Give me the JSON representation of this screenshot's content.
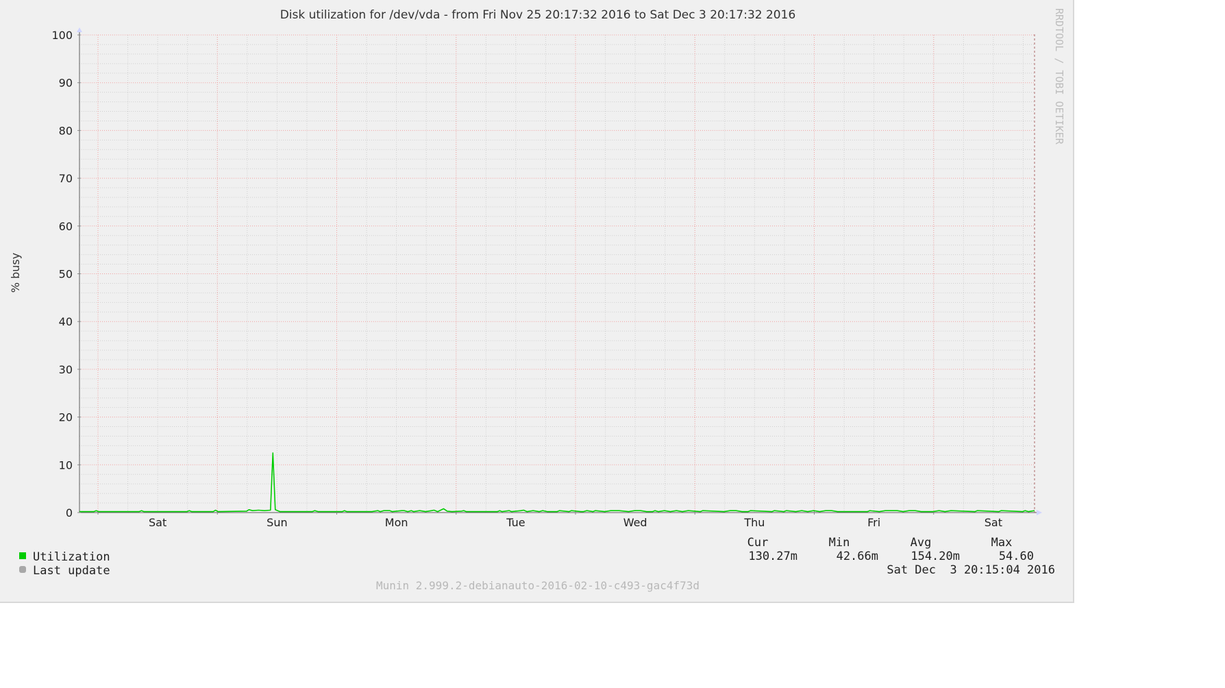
{
  "chart_data": {
    "type": "line",
    "title": "Disk utilization for /dev/vda - from Fri Nov 25 20:17:32 2016 to Sat Dec  3 20:17:32 2016",
    "ylabel": "% busy",
    "xlabel": "",
    "ylim": [
      0,
      100
    ],
    "yticks": [
      "0",
      "10",
      "20",
      "30",
      "40",
      "50",
      "60",
      "70",
      "80",
      "90",
      "100"
    ],
    "xlim_days": [
      0,
      8
    ],
    "xticks": [
      {
        "label": "Sat",
        "day": 0.655
      },
      {
        "label": "Sun",
        "day": 1.655
      },
      {
        "label": "Mon",
        "day": 2.655
      },
      {
        "label": "Tue",
        "day": 3.655
      },
      {
        "label": "Wed",
        "day": 4.655
      },
      {
        "label": "Thu",
        "day": 5.655
      },
      {
        "label": "Fri",
        "day": 6.655
      },
      {
        "label": "Sat",
        "day": 7.655
      }
    ],
    "grid": true,
    "series": [
      {
        "name": "Utilization",
        "color": "#00cc00",
        "x_days": [
          0,
          0.12,
          0.14,
          0.16,
          0.5,
          0.52,
          0.54,
          0.9,
          0.92,
          0.94,
          1.12,
          1.14,
          1.16,
          1.4,
          1.42,
          1.45,
          1.5,
          1.55,
          1.6,
          1.62,
          1.64,
          1.66,
          1.68,
          1.7,
          1.72,
          1.76,
          1.8,
          1.95,
          1.97,
          2.0,
          2.2,
          2.22,
          2.24,
          2.45,
          2.5,
          2.52,
          2.55,
          2.6,
          2.62,
          2.7,
          2.72,
          2.75,
          2.78,
          2.8,
          2.85,
          2.9,
          2.95,
          2.97,
          3.0,
          3.05,
          3.08,
          3.12,
          3.2,
          3.22,
          3.24,
          3.5,
          3.52,
          3.54,
          3.6,
          3.62,
          3.7,
          3.72,
          3.75,
          3.8,
          3.85,
          3.88,
          3.92,
          4.0,
          4.02,
          4.1,
          4.12,
          4.2,
          4.22,
          4.25,
          4.3,
          4.32,
          4.4,
          4.45,
          4.5,
          4.52,
          4.6,
          4.65,
          4.7,
          4.75,
          4.8,
          4.82,
          4.85,
          4.9,
          4.95,
          5.0,
          5.05,
          5.1,
          5.2,
          5.22,
          5.4,
          5.45,
          5.5,
          5.55,
          5.6,
          5.62,
          5.8,
          5.82,
          5.9,
          5.92,
          6.0,
          6.05,
          6.1,
          6.15,
          6.2,
          6.25,
          6.3,
          6.35,
          6.6,
          6.62,
          6.7,
          6.75,
          6.8,
          6.85,
          6.9,
          6.95,
          7.0,
          7.05,
          7.15,
          7.2,
          7.25,
          7.3,
          7.5,
          7.52,
          7.7,
          7.72,
          7.9,
          7.92,
          7.95,
          8.0
        ],
        "values": [
          0.2,
          0.2,
          0.4,
          0.2,
          0.2,
          0.4,
          0.2,
          0.2,
          0.4,
          0.2,
          0.2,
          0.5,
          0.2,
          0.3,
          0.6,
          0.4,
          0.5,
          0.4,
          0.5,
          12.5,
          0.6,
          0.4,
          0.2,
          0.2,
          0.2,
          0.2,
          0.2,
          0.2,
          0.4,
          0.2,
          0.2,
          0.4,
          0.2,
          0.2,
          0.4,
          0.2,
          0.4,
          0.4,
          0.2,
          0.4,
          0.4,
          0.2,
          0.4,
          0.2,
          0.4,
          0.2,
          0.4,
          0.5,
          0.2,
          0.8,
          0.3,
          0.2,
          0.3,
          0.4,
          0.2,
          0.2,
          0.4,
          0.2,
          0.4,
          0.2,
          0.4,
          0.5,
          0.2,
          0.4,
          0.2,
          0.4,
          0.2,
          0.2,
          0.4,
          0.2,
          0.4,
          0.2,
          0.2,
          0.4,
          0.2,
          0.4,
          0.2,
          0.4,
          0.4,
          0.4,
          0.2,
          0.4,
          0.4,
          0.2,
          0.2,
          0.4,
          0.2,
          0.4,
          0.2,
          0.4,
          0.2,
          0.4,
          0.2,
          0.4,
          0.2,
          0.4,
          0.4,
          0.2,
          0.2,
          0.4,
          0.2,
          0.4,
          0.2,
          0.4,
          0.2,
          0.4,
          0.2,
          0.4,
          0.2,
          0.4,
          0.4,
          0.2,
          0.2,
          0.4,
          0.2,
          0.4,
          0.4,
          0.4,
          0.2,
          0.4,
          0.4,
          0.2,
          0.2,
          0.4,
          0.2,
          0.4,
          0.2,
          0.4,
          0.2,
          0.4,
          0.2,
          0.4,
          0.2,
          0.4
        ]
      }
    ],
    "legend": {
      "placement": "bottom",
      "headers": [
        "Cur",
        "Min",
        "Avg",
        "Max"
      ],
      "rows": [
        {
          "name": "Utilization",
          "color": "#00cc00",
          "cur": "130.27m",
          "min": "42.66m",
          "avg": "154.20m",
          "max": "54.60"
        }
      ],
      "last_update_label": "Last update",
      "last_update_value": "Sat Dec  3 20:15:04 2016"
    },
    "side_text": "RRDTOOL / TOBI OETIKER",
    "footer": "Munin 2.999.2-debianauto-2016-02-10-c493-gac4f73d"
  }
}
